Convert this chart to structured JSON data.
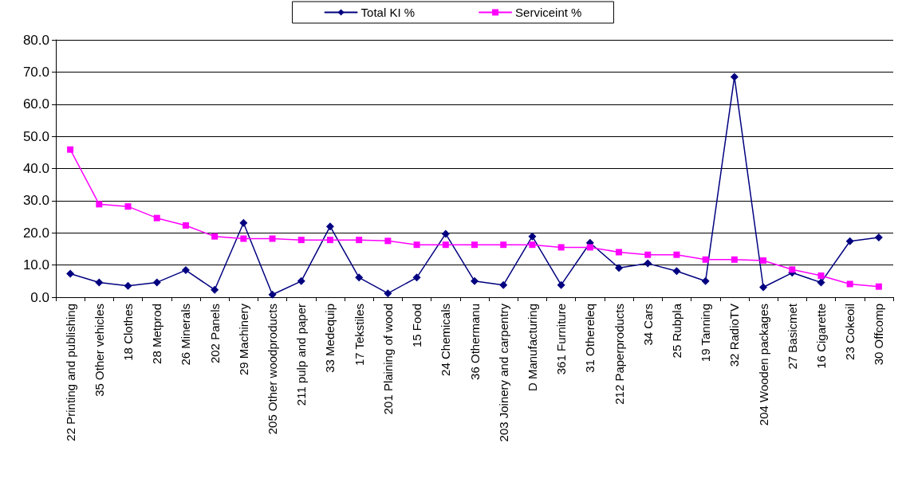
{
  "chart_data": {
    "type": "line",
    "categories": [
      "22 Printing and publishing",
      "35 Other vehicles",
      "18 Clothes",
      "28 Metprod",
      "26 Minerals",
      "202 Panels",
      "29 Machinery",
      "205 Other woodproducts",
      "211 pulp and paper",
      "33 Medequip",
      "17 Tekstiles",
      "201 Plaining of wood",
      "15 Food",
      "24 Chemicals",
      "36 Othermanu",
      "203 Joinery and carpentry",
      "D Manufacturing",
      "361 Furniture",
      "31 Othereleq",
      "212 Paperproducts",
      "34 Cars",
      "25 Rubpla",
      "19 Tanning",
      "32 RadioTV",
      "204 Wooden packages",
      "27 Basicmet",
      "16 Cigarette",
      "23 Cokeoil",
      "30 Offcomp"
    ],
    "series": [
      {
        "name": "Total KI %",
        "color": "#000080",
        "marker": "diamond",
        "values": [
          7.3,
          4.6,
          3.5,
          4.6,
          8.4,
          2.3,
          23.1,
          0.8,
          5.0,
          22.0,
          6.1,
          1.2,
          6.1,
          19.7,
          5.0,
          3.8,
          18.9,
          3.8,
          16.9,
          9.1,
          10.5,
          8.1,
          5.0,
          68.5,
          3.1,
          7.6,
          4.6,
          17.4,
          18.6
        ]
      },
      {
        "name": "Serviceint %",
        "color": "#ff00ff",
        "marker": "square",
        "values": [
          45.9,
          28.9,
          28.2,
          24.6,
          22.3,
          18.9,
          18.2,
          18.2,
          17.8,
          17.8,
          17.8,
          17.5,
          16.3,
          16.3,
          16.3,
          16.3,
          16.3,
          15.5,
          15.5,
          14.0,
          13.2,
          13.2,
          11.7,
          11.7,
          11.4,
          8.6,
          6.7,
          4.1,
          3.3
        ]
      }
    ],
    "ylim": [
      0,
      80
    ],
    "yticks": [
      {
        "value": 0,
        "label": "0.0"
      },
      {
        "value": 10,
        "label": "10.0"
      },
      {
        "value": 20,
        "label": "20.0"
      },
      {
        "value": 30,
        "label": "30.0"
      },
      {
        "value": 40,
        "label": "40.0"
      },
      {
        "value": 50,
        "label": "50.0"
      },
      {
        "value": 60,
        "label": "60.0"
      },
      {
        "value": 70,
        "label": "70.0"
      },
      {
        "value": 80,
        "label": "80.0"
      }
    ],
    "grid": "y",
    "legend": "top",
    "line_style": "solid"
  }
}
